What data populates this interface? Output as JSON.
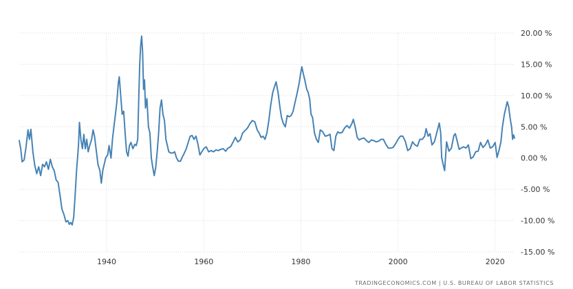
{
  "source_label": "TRADINGECONOMICS.COM | U.S. BUREAU OF LABOR STATISTICS",
  "chart_data": {
    "type": "line",
    "title": "",
    "xlabel": "",
    "ylabel": "",
    "xlim": [
      1922,
      2024
    ],
    "ylim": [
      -15,
      20
    ],
    "yticks": [
      20,
      15,
      10,
      5,
      0,
      -5,
      -10,
      -15
    ],
    "ytick_labels": [
      "20.00 %",
      "15.00 %",
      "10.00 %",
      "5.00 %",
      "0.00 %",
      "-5.00 %",
      "-10.00 %",
      "-15.00 %"
    ],
    "xticks": [
      1940,
      1960,
      1980,
      2000,
      2020
    ],
    "xtick_labels": [
      "1940",
      "1960",
      "1980",
      "2000",
      "2020"
    ],
    "grid": true,
    "line_color": "#4682b4",
    "series": [
      {
        "values": [
          {
            "x": 1922.0,
            "y": 2.8
          },
          {
            "x": 1922.3,
            "y": 1.5
          },
          {
            "x": 1922.6,
            "y": -0.6
          },
          {
            "x": 1923.0,
            "y": -0.3
          },
          {
            "x": 1923.4,
            "y": 1.8
          },
          {
            "x": 1923.8,
            "y": 4.5
          },
          {
            "x": 1924.1,
            "y": 3.0
          },
          {
            "x": 1924.4,
            "y": 4.6
          },
          {
            "x": 1924.8,
            "y": 1.0
          },
          {
            "x": 1925.2,
            "y": -1.2
          },
          {
            "x": 1925.6,
            "y": -2.5
          },
          {
            "x": 1926.0,
            "y": -1.4
          },
          {
            "x": 1926.4,
            "y": -2.8
          },
          {
            "x": 1926.8,
            "y": -1.0
          },
          {
            "x": 1927.2,
            "y": -1.4
          },
          {
            "x": 1927.6,
            "y": -0.6
          },
          {
            "x": 1928.0,
            "y": -1.8
          },
          {
            "x": 1928.4,
            "y": -0.2
          },
          {
            "x": 1928.8,
            "y": -1.4
          },
          {
            "x": 1929.2,
            "y": -2.0
          },
          {
            "x": 1929.6,
            "y": -3.5
          },
          {
            "x": 1930.0,
            "y": -3.9
          },
          {
            "x": 1930.4,
            "y": -6.0
          },
          {
            "x": 1930.8,
            "y": -8.2
          },
          {
            "x": 1931.2,
            "y": -9.0
          },
          {
            "x": 1931.6,
            "y": -10.2
          },
          {
            "x": 1932.0,
            "y": -10.0
          },
          {
            "x": 1932.3,
            "y": -10.6
          },
          {
            "x": 1932.6,
            "y": -10.3
          },
          {
            "x": 1932.9,
            "y": -10.7
          },
          {
            "x": 1933.2,
            "y": -9.5
          },
          {
            "x": 1933.5,
            "y": -6.0
          },
          {
            "x": 1933.8,
            "y": -2.0
          },
          {
            "x": 1934.2,
            "y": 2.0
          },
          {
            "x": 1934.4,
            "y": 5.7
          },
          {
            "x": 1934.7,
            "y": 3.0
          },
          {
            "x": 1935.0,
            "y": 1.5
          },
          {
            "x": 1935.3,
            "y": 3.8
          },
          {
            "x": 1935.6,
            "y": 1.5
          },
          {
            "x": 1935.9,
            "y": 3.0
          },
          {
            "x": 1936.2,
            "y": 1.0
          },
          {
            "x": 1936.5,
            "y": 2.0
          },
          {
            "x": 1936.9,
            "y": 3.0
          },
          {
            "x": 1937.2,
            "y": 4.5
          },
          {
            "x": 1937.5,
            "y": 3.5
          },
          {
            "x": 1937.9,
            "y": 1.0
          },
          {
            "x": 1938.2,
            "y": -1.0
          },
          {
            "x": 1938.6,
            "y": -2.0
          },
          {
            "x": 1938.9,
            "y": -4.0
          },
          {
            "x": 1939.2,
            "y": -2.0
          },
          {
            "x": 1939.5,
            "y": -1.0
          },
          {
            "x": 1939.8,
            "y": 0.0
          },
          {
            "x": 1940.2,
            "y": 0.5
          },
          {
            "x": 1940.5,
            "y": 2.0
          },
          {
            "x": 1940.9,
            "y": 0.0
          },
          {
            "x": 1941.2,
            "y": 3.0
          },
          {
            "x": 1941.5,
            "y": 5.0
          },
          {
            "x": 1941.8,
            "y": 7.0
          },
          {
            "x": 1942.1,
            "y": 9.0
          },
          {
            "x": 1942.4,
            "y": 12.0
          },
          {
            "x": 1942.6,
            "y": 13.0
          },
          {
            "x": 1942.9,
            "y": 10.0
          },
          {
            "x": 1943.2,
            "y": 7.0
          },
          {
            "x": 1943.5,
            "y": 7.5
          },
          {
            "x": 1943.8,
            "y": 4.0
          },
          {
            "x": 1944.1,
            "y": 1.0
          },
          {
            "x": 1944.4,
            "y": 0.3
          },
          {
            "x": 1944.7,
            "y": 2.0
          },
          {
            "x": 1945.0,
            "y": 2.5
          },
          {
            "x": 1945.4,
            "y": 1.5
          },
          {
            "x": 1945.8,
            "y": 2.2
          },
          {
            "x": 1946.1,
            "y": 2.0
          },
          {
            "x": 1946.4,
            "y": 3.0
          },
          {
            "x": 1946.6,
            "y": 9.0
          },
          {
            "x": 1946.8,
            "y": 15.0
          },
          {
            "x": 1947.0,
            "y": 18.0
          },
          {
            "x": 1947.2,
            "y": 19.5
          },
          {
            "x": 1947.4,
            "y": 17.0
          },
          {
            "x": 1947.6,
            "y": 11.0
          },
          {
            "x": 1947.8,
            "y": 12.5
          },
          {
            "x": 1948.0,
            "y": 8.0
          },
          {
            "x": 1948.3,
            "y": 9.5
          },
          {
            "x": 1948.6,
            "y": 5.0
          },
          {
            "x": 1948.9,
            "y": 4.0
          },
          {
            "x": 1949.2,
            "y": 0.0
          },
          {
            "x": 1949.5,
            "y": -1.5
          },
          {
            "x": 1949.8,
            "y": -2.8
          },
          {
            "x": 1950.1,
            "y": -1.5
          },
          {
            "x": 1950.4,
            "y": 1.0
          },
          {
            "x": 1950.7,
            "y": 4.0
          },
          {
            "x": 1951.0,
            "y": 8.0
          },
          {
            "x": 1951.3,
            "y": 9.3
          },
          {
            "x": 1951.6,
            "y": 7.0
          },
          {
            "x": 1951.9,
            "y": 6.0
          },
          {
            "x": 1952.2,
            "y": 3.0
          },
          {
            "x": 1952.5,
            "y": 2.0
          },
          {
            "x": 1952.8,
            "y": 1.0
          },
          {
            "x": 1953.2,
            "y": 0.8
          },
          {
            "x": 1953.6,
            "y": 0.8
          },
          {
            "x": 1954.0,
            "y": 1.0
          },
          {
            "x": 1954.4,
            "y": 0.0
          },
          {
            "x": 1954.8,
            "y": -0.5
          },
          {
            "x": 1955.2,
            "y": -0.5
          },
          {
            "x": 1955.6,
            "y": 0.2
          },
          {
            "x": 1956.0,
            "y": 0.8
          },
          {
            "x": 1956.4,
            "y": 1.5
          },
          {
            "x": 1956.8,
            "y": 2.5
          },
          {
            "x": 1957.2,
            "y": 3.5
          },
          {
            "x": 1957.6,
            "y": 3.6
          },
          {
            "x": 1958.0,
            "y": 3.0
          },
          {
            "x": 1958.4,
            "y": 3.5
          },
          {
            "x": 1958.8,
            "y": 2.2
          },
          {
            "x": 1959.2,
            "y": 0.5
          },
          {
            "x": 1959.6,
            "y": 1.0
          },
          {
            "x": 1960.0,
            "y": 1.5
          },
          {
            "x": 1960.5,
            "y": 1.8
          },
          {
            "x": 1961.0,
            "y": 1.0
          },
          {
            "x": 1961.5,
            "y": 1.2
          },
          {
            "x": 1962.0,
            "y": 1.0
          },
          {
            "x": 1962.5,
            "y": 1.3
          },
          {
            "x": 1963.0,
            "y": 1.2
          },
          {
            "x": 1963.5,
            "y": 1.4
          },
          {
            "x": 1964.0,
            "y": 1.5
          },
          {
            "x": 1964.5,
            "y": 1.1
          },
          {
            "x": 1965.0,
            "y": 1.6
          },
          {
            "x": 1965.5,
            "y": 1.8
          },
          {
            "x": 1966.0,
            "y": 2.5
          },
          {
            "x": 1966.5,
            "y": 3.3
          },
          {
            "x": 1967.0,
            "y": 2.6
          },
          {
            "x": 1967.5,
            "y": 2.9
          },
          {
            "x": 1968.0,
            "y": 4.0
          },
          {
            "x": 1968.5,
            "y": 4.4
          },
          {
            "x": 1969.0,
            "y": 4.8
          },
          {
            "x": 1969.5,
            "y": 5.5
          },
          {
            "x": 1970.0,
            "y": 6.0
          },
          {
            "x": 1970.5,
            "y": 5.8
          },
          {
            "x": 1971.0,
            "y": 4.5
          },
          {
            "x": 1971.4,
            "y": 4.0
          },
          {
            "x": 1971.8,
            "y": 3.3
          },
          {
            "x": 1972.2,
            "y": 3.5
          },
          {
            "x": 1972.6,
            "y": 3.0
          },
          {
            "x": 1973.0,
            "y": 4.0
          },
          {
            "x": 1973.4,
            "y": 6.0
          },
          {
            "x": 1973.8,
            "y": 8.5
          },
          {
            "x": 1974.2,
            "y": 10.5
          },
          {
            "x": 1974.6,
            "y": 11.5
          },
          {
            "x": 1974.9,
            "y": 12.2
          },
          {
            "x": 1975.3,
            "y": 10.5
          },
          {
            "x": 1975.7,
            "y": 8.0
          },
          {
            "x": 1976.0,
            "y": 6.5
          },
          {
            "x": 1976.4,
            "y": 5.5
          },
          {
            "x": 1976.8,
            "y": 5.0
          },
          {
            "x": 1977.2,
            "y": 6.8
          },
          {
            "x": 1977.6,
            "y": 6.6
          },
          {
            "x": 1978.0,
            "y": 6.8
          },
          {
            "x": 1978.4,
            "y": 7.5
          },
          {
            "x": 1978.8,
            "y": 8.9
          },
          {
            "x": 1979.2,
            "y": 10.3
          },
          {
            "x": 1979.6,
            "y": 11.8
          },
          {
            "x": 1979.9,
            "y": 13.3
          },
          {
            "x": 1980.2,
            "y": 14.6
          },
          {
            "x": 1980.5,
            "y": 13.5
          },
          {
            "x": 1980.8,
            "y": 12.5
          },
          {
            "x": 1981.2,
            "y": 11.0
          },
          {
            "x": 1981.5,
            "y": 10.5
          },
          {
            "x": 1981.8,
            "y": 9.5
          },
          {
            "x": 1982.1,
            "y": 7.0
          },
          {
            "x": 1982.4,
            "y": 6.5
          },
          {
            "x": 1982.8,
            "y": 4.0
          },
          {
            "x": 1983.2,
            "y": 3.0
          },
          {
            "x": 1983.6,
            "y": 2.5
          },
          {
            "x": 1984.0,
            "y": 4.5
          },
          {
            "x": 1984.5,
            "y": 4.2
          },
          {
            "x": 1985.0,
            "y": 3.5
          },
          {
            "x": 1985.5,
            "y": 3.6
          },
          {
            "x": 1986.0,
            "y": 3.8
          },
          {
            "x": 1986.4,
            "y": 1.5
          },
          {
            "x": 1986.8,
            "y": 1.2
          },
          {
            "x": 1987.2,
            "y": 3.5
          },
          {
            "x": 1987.6,
            "y": 4.2
          },
          {
            "x": 1988.0,
            "y": 4.0
          },
          {
            "x": 1988.5,
            "y": 4.1
          },
          {
            "x": 1989.0,
            "y": 4.8
          },
          {
            "x": 1989.5,
            "y": 5.2
          },
          {
            "x": 1990.0,
            "y": 4.8
          },
          {
            "x": 1990.5,
            "y": 5.5
          },
          {
            "x": 1990.8,
            "y": 6.2
          },
          {
            "x": 1991.2,
            "y": 4.9
          },
          {
            "x": 1991.6,
            "y": 3.3
          },
          {
            "x": 1992.0,
            "y": 2.9
          },
          {
            "x": 1992.5,
            "y": 3.1
          },
          {
            "x": 1993.0,
            "y": 3.2
          },
          {
            "x": 1993.5,
            "y": 2.8
          },
          {
            "x": 1994.0,
            "y": 2.5
          },
          {
            "x": 1994.5,
            "y": 2.9
          },
          {
            "x": 1995.0,
            "y": 2.8
          },
          {
            "x": 1995.5,
            "y": 2.6
          },
          {
            "x": 1996.0,
            "y": 2.7
          },
          {
            "x": 1996.5,
            "y": 3.0
          },
          {
            "x": 1997.0,
            "y": 3.0
          },
          {
            "x": 1997.5,
            "y": 2.2
          },
          {
            "x": 1998.0,
            "y": 1.6
          },
          {
            "x": 1998.5,
            "y": 1.6
          },
          {
            "x": 1999.0,
            "y": 1.7
          },
          {
            "x": 1999.5,
            "y": 2.3
          },
          {
            "x": 2000.0,
            "y": 3.0
          },
          {
            "x": 2000.5,
            "y": 3.5
          },
          {
            "x": 2001.0,
            "y": 3.5
          },
          {
            "x": 2001.5,
            "y": 2.7
          },
          {
            "x": 2002.0,
            "y": 1.2
          },
          {
            "x": 2002.5,
            "y": 1.5
          },
          {
            "x": 2003.0,
            "y": 2.6
          },
          {
            "x": 2003.5,
            "y": 2.1
          },
          {
            "x": 2004.0,
            "y": 1.9
          },
          {
            "x": 2004.5,
            "y": 3.0
          },
          {
            "x": 2005.0,
            "y": 3.0
          },
          {
            "x": 2005.5,
            "y": 3.5
          },
          {
            "x": 2005.8,
            "y": 4.7
          },
          {
            "x": 2006.2,
            "y": 3.5
          },
          {
            "x": 2006.6,
            "y": 3.9
          },
          {
            "x": 2007.0,
            "y": 2.1
          },
          {
            "x": 2007.5,
            "y": 2.6
          },
          {
            "x": 2008.0,
            "y": 4.1
          },
          {
            "x": 2008.5,
            "y": 5.6
          },
          {
            "x": 2008.8,
            "y": 4.0
          },
          {
            "x": 2009.0,
            "y": 0.1
          },
          {
            "x": 2009.3,
            "y": -1.0
          },
          {
            "x": 2009.6,
            "y": -2.0
          },
          {
            "x": 2010.0,
            "y": 2.6
          },
          {
            "x": 2010.5,
            "y": 1.1
          },
          {
            "x": 2011.0,
            "y": 1.6
          },
          {
            "x": 2011.5,
            "y": 3.6
          },
          {
            "x": 2011.8,
            "y": 3.9
          },
          {
            "x": 2012.2,
            "y": 2.7
          },
          {
            "x": 2012.6,
            "y": 1.4
          },
          {
            "x": 2013.0,
            "y": 1.6
          },
          {
            "x": 2013.5,
            "y": 1.8
          },
          {
            "x": 2014.0,
            "y": 1.6
          },
          {
            "x": 2014.5,
            "y": 2.1
          },
          {
            "x": 2015.0,
            "y": -0.1
          },
          {
            "x": 2015.5,
            "y": 0.2
          },
          {
            "x": 2016.0,
            "y": 1.0
          },
          {
            "x": 2016.5,
            "y": 1.1
          },
          {
            "x": 2017.0,
            "y": 2.5
          },
          {
            "x": 2017.5,
            "y": 1.7
          },
          {
            "x": 2018.0,
            "y": 2.1
          },
          {
            "x": 2018.5,
            "y": 2.9
          },
          {
            "x": 2019.0,
            "y": 1.6
          },
          {
            "x": 2019.5,
            "y": 1.8
          },
          {
            "x": 2020.0,
            "y": 2.5
          },
          {
            "x": 2020.4,
            "y": 0.1
          },
          {
            "x": 2020.8,
            "y": 1.2
          },
          {
            "x": 2021.2,
            "y": 2.6
          },
          {
            "x": 2021.5,
            "y": 5.0
          },
          {
            "x": 2021.9,
            "y": 7.0
          },
          {
            "x": 2022.2,
            "y": 8.0
          },
          {
            "x": 2022.5,
            "y": 9.0
          },
          {
            "x": 2022.8,
            "y": 8.2
          },
          {
            "x": 2023.1,
            "y": 6.4
          },
          {
            "x": 2023.4,
            "y": 4.9
          },
          {
            "x": 2023.6,
            "y": 3.0
          },
          {
            "x": 2023.8,
            "y": 3.7
          },
          {
            "x": 2024.0,
            "y": 3.2
          }
        ]
      }
    ]
  }
}
